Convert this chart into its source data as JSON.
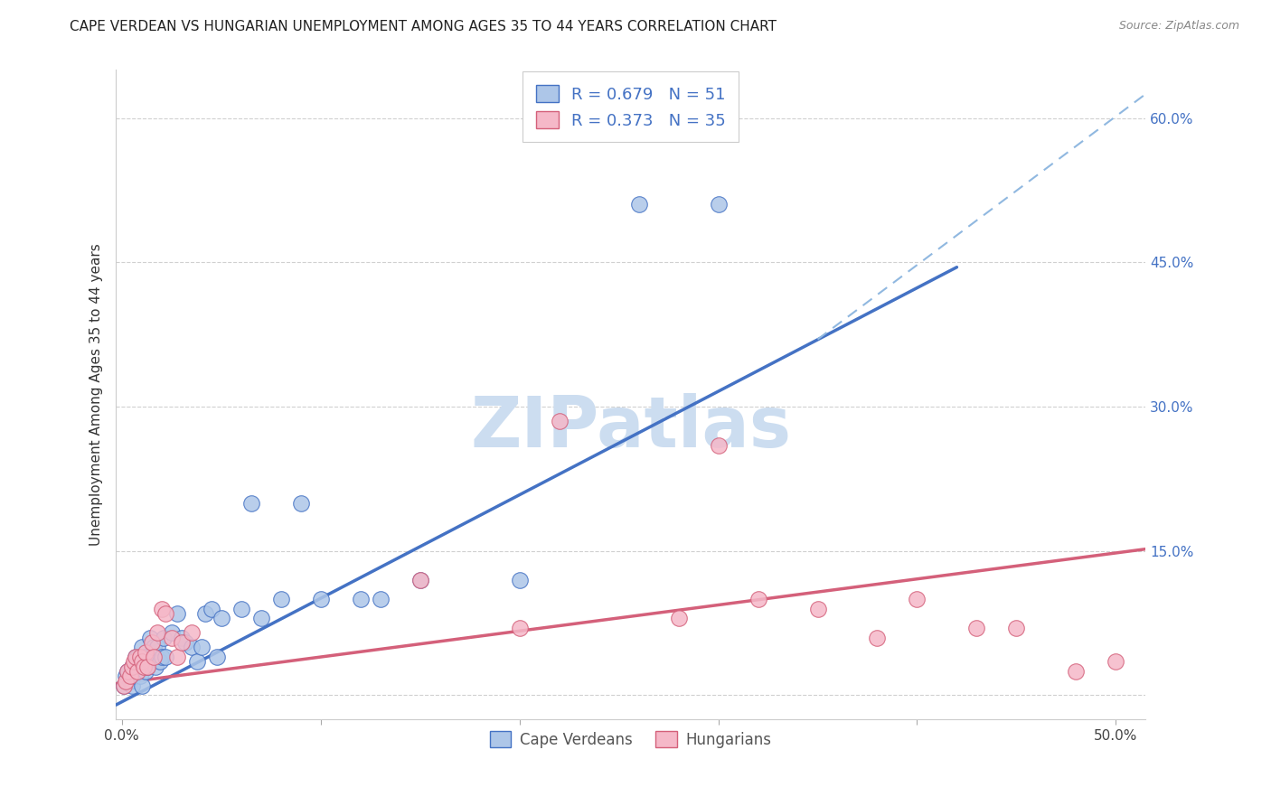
{
  "title": "CAPE VERDEAN VS HUNGARIAN UNEMPLOYMENT AMONG AGES 35 TO 44 YEARS CORRELATION CHART",
  "source": "Source: ZipAtlas.com",
  "ylabel": "Unemployment Among Ages 35 to 44 years",
  "xlim": [
    -0.003,
    0.515
  ],
  "ylim": [
    -0.025,
    0.65
  ],
  "xtick_vals": [
    0.0,
    0.1,
    0.2,
    0.3,
    0.4,
    0.5
  ],
  "xtick_labels": [
    "0.0%",
    "",
    "",
    "",
    "",
    "50.0%"
  ],
  "ytick_right_vals": [
    0.0,
    0.15,
    0.3,
    0.45,
    0.6
  ],
  "ytick_right_labels": [
    "",
    "15.0%",
    "30.0%",
    "45.0%",
    "60.0%"
  ],
  "color_blue_fill": "#adc6e8",
  "color_blue_edge": "#4472c4",
  "color_pink_fill": "#f5b8c8",
  "color_pink_edge": "#d4607a",
  "line_blue_color": "#4472c4",
  "line_pink_color": "#d4607a",
  "line_dash_color": "#90b8e0",
  "watermark_text": "ZIPatlas",
  "watermark_color": "#ccddf0",
  "r1": "0.679",
  "n1": "51",
  "r2": "0.373",
  "n2": "35",
  "legend1_label": "Cape Verdeans",
  "legend2_label": "Hungarians",
  "blue_line_x0": -0.003,
  "blue_line_x1": 0.42,
  "blue_line_y0": -0.01,
  "blue_line_y1": 0.445,
  "pink_line_x0": -0.003,
  "pink_line_x1": 0.515,
  "pink_line_y0": 0.012,
  "pink_line_y1": 0.152,
  "dash_line_x0": 0.35,
  "dash_line_x1": 0.515,
  "dash_line_y0": 0.37,
  "dash_line_y1": 0.625,
  "cv_x": [
    0.001,
    0.002,
    0.003,
    0.004,
    0.005,
    0.005,
    0.006,
    0.007,
    0.007,
    0.008,
    0.008,
    0.009,
    0.009,
    0.01,
    0.01,
    0.011,
    0.012,
    0.012,
    0.013,
    0.014,
    0.015,
    0.016,
    0.017,
    0.018,
    0.019,
    0.02,
    0.021,
    0.022,
    0.025,
    0.028,
    0.03,
    0.032,
    0.035,
    0.038,
    0.04,
    0.042,
    0.045,
    0.048,
    0.05,
    0.06,
    0.065,
    0.07,
    0.08,
    0.09,
    0.1,
    0.12,
    0.13,
    0.15,
    0.2,
    0.26,
    0.3
  ],
  "cv_y": [
    0.01,
    0.02,
    0.025,
    0.015,
    0.01,
    0.03,
    0.02,
    0.03,
    0.04,
    0.025,
    0.04,
    0.02,
    0.035,
    0.01,
    0.05,
    0.03,
    0.025,
    0.04,
    0.03,
    0.06,
    0.04,
    0.05,
    0.03,
    0.05,
    0.035,
    0.04,
    0.06,
    0.04,
    0.065,
    0.085,
    0.06,
    0.055,
    0.05,
    0.035,
    0.05,
    0.085,
    0.09,
    0.04,
    0.08,
    0.09,
    0.2,
    0.08,
    0.1,
    0.2,
    0.1,
    0.1,
    0.1,
    0.12,
    0.12,
    0.51,
    0.51
  ],
  "hu_x": [
    0.001,
    0.002,
    0.003,
    0.004,
    0.005,
    0.006,
    0.007,
    0.008,
    0.009,
    0.01,
    0.011,
    0.012,
    0.013,
    0.015,
    0.016,
    0.018,
    0.02,
    0.022,
    0.025,
    0.028,
    0.03,
    0.035,
    0.15,
    0.2,
    0.22,
    0.28,
    0.3,
    0.32,
    0.35,
    0.38,
    0.4,
    0.43,
    0.45,
    0.48,
    0.5
  ],
  "hu_y": [
    0.01,
    0.015,
    0.025,
    0.02,
    0.03,
    0.035,
    0.04,
    0.025,
    0.04,
    0.035,
    0.03,
    0.045,
    0.03,
    0.055,
    0.04,
    0.065,
    0.09,
    0.085,
    0.06,
    0.04,
    0.055,
    0.065,
    0.12,
    0.07,
    0.285,
    0.08,
    0.26,
    0.1,
    0.09,
    0.06,
    0.1,
    0.07,
    0.07,
    0.025,
    0.035
  ]
}
